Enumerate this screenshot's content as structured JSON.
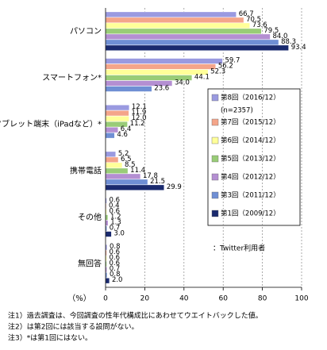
{
  "chart_data": {
    "type": "bar",
    "orientation": "horizontal",
    "categories": [
      "パソコン",
      "スマートフォン*",
      "タブレット端末（iPadなど）*",
      "携帯電話",
      "その他",
      "無回答"
    ],
    "series": [
      {
        "name": "第8回（2016/12）",
        "color": "#9a9ae0",
        "values": [
          66.7,
          59.7,
          12.1,
          5.2,
          0.6,
          0.8
        ],
        "value_labels": [
          "66.7",
          "59.7",
          "12.1",
          "5.2",
          "0.6",
          "0.8"
        ]
      },
      {
        "name": "第7回（2015/12）",
        "color": "#f4a58a",
        "values": [
          70.5,
          56.2,
          11.9,
          6.5,
          0.4,
          0.6
        ],
        "value_labels": [
          "70.5",
          "56.2",
          "11.9",
          "6.5",
          "0.4",
          "0.6"
        ]
      },
      {
        "name": "第6回（2014/12）",
        "color": "#ffff99",
        "values": [
          73.6,
          52.3,
          12.0,
          8.5,
          0.6,
          0.6
        ],
        "value_labels": [
          "73.6",
          "52.3",
          "12.0",
          "8.5",
          "0.6",
          "0.6"
        ]
      },
      {
        "name": "第5回（2013/12）",
        "color": "#99cc77",
        "values": [
          79.5,
          44.1,
          11.2,
          11.4,
          1.2,
          0.6
        ],
        "value_labels": [
          "79.5",
          "44.1",
          "11.2",
          "11.4",
          "1.2",
          "0.6"
        ]
      },
      {
        "name": "第4回（2012/12）",
        "color": "#b48fd2",
        "values": [
          84.0,
          34.0,
          6.4,
          17.8,
          1.3,
          0.7
        ],
        "value_labels": [
          "84.0",
          "34.0",
          "6.4",
          "17.8",
          "1.3",
          "0.7"
        ]
      },
      {
        "name": "第3回（2011/12）",
        "color": "#6f8fd4",
        "values": [
          88.3,
          23.6,
          4.6,
          21.5,
          0.7,
          0.8
        ],
        "value_labels": [
          "88.3",
          "23.6",
          "4.6",
          "21.5",
          "0.7",
          "0.8"
        ]
      },
      {
        "name": "第1回（2009/12）",
        "color": "#1a2a6e",
        "values": [
          93.4,
          null,
          null,
          29.9,
          3.0,
          2.0
        ],
        "value_labels": [
          "93.4",
          null,
          null,
          "29.9",
          "3.0",
          "2.0"
        ]
      }
    ],
    "legend_note": "(n=2357)",
    "annotation": "：Twitter利用者",
    "xlabel": "（%）",
    "xlim": [
      0,
      100
    ],
    "xticks": [
      0,
      20,
      40,
      60,
      80,
      100
    ],
    "grid": true,
    "notes": [
      "注1）過去調査は、今回調査の性年代構成比にあわせてウエイトバックした値。",
      "注2）は第2回には該当する設問がない。",
      "注3）*は第1回にはない。"
    ]
  }
}
